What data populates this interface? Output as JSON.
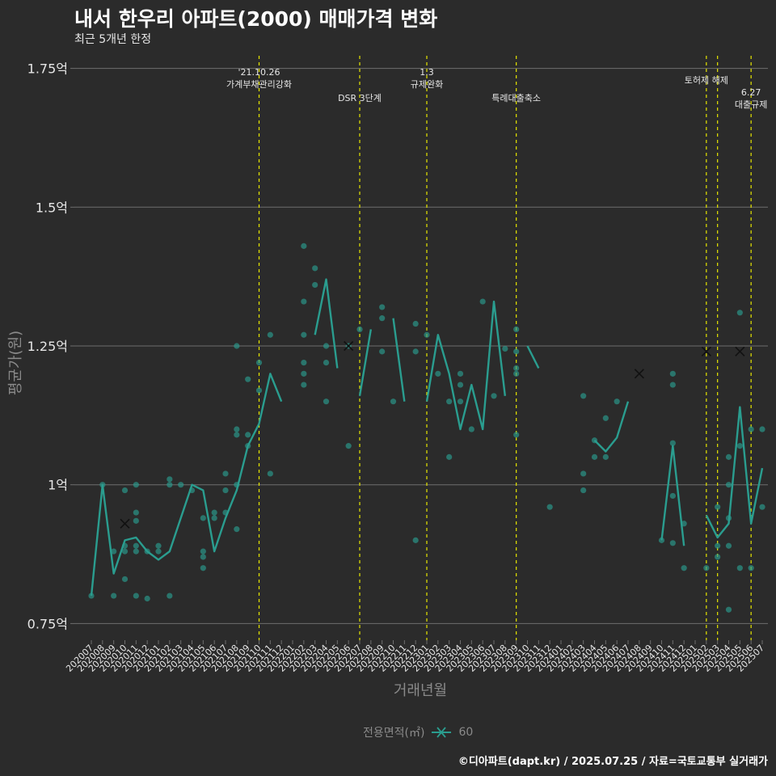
{
  "title": "내서 한우리 아파트(2000) 매매가격 변화",
  "subtitle": "최근 5개년 한정",
  "caption": "©디아파트(dapt.kr) / 2025.07.25 / 자료=국토교통부 실거래가",
  "colors": {
    "background": "#2b2b2b",
    "series": "#2a9d8f",
    "grid": "#6e6e6e",
    "event_line": "#e6e600",
    "text": "#e6e6e6"
  },
  "chart_data": {
    "type": "line",
    "xlabel": "거래년월",
    "ylabel": "평균가(원)",
    "categories": [
      "202007",
      "202008",
      "202009",
      "202010",
      "202011",
      "202012",
      "202101",
      "202102",
      "202103",
      "202104",
      "202105",
      "202106",
      "202107",
      "202108",
      "202109",
      "202110",
      "202111",
      "202112",
      "202201",
      "202202",
      "202203",
      "202204",
      "202205",
      "202206",
      "202207",
      "202208",
      "202209",
      "202210",
      "202211",
      "202212",
      "202301",
      "202302",
      "202303",
      "202304",
      "202305",
      "202306",
      "202307",
      "202308",
      "202309",
      "202310",
      "202311",
      "202312",
      "202401",
      "202402",
      "202403",
      "202404",
      "202405",
      "202406",
      "202407",
      "202408",
      "202409",
      "202410",
      "202411",
      "202412",
      "202501",
      "202502",
      "202503",
      "202504",
      "202505",
      "202506",
      "202507"
    ],
    "ylim": [
      0.72,
      1.78
    ],
    "yticks": [
      {
        "value": 0.75,
        "label": "0.75억"
      },
      {
        "value": 1.0,
        "label": "1억"
      },
      {
        "value": 1.25,
        "label": "1.25억"
      },
      {
        "value": 1.5,
        "label": "1.5억"
      },
      {
        "value": 1.75,
        "label": "1.75억"
      }
    ],
    "legend": {
      "title": "전용면적(㎡)",
      "entries": [
        "60"
      ],
      "position": "bottom"
    },
    "series": [
      {
        "name": "60",
        "line_values": [
          0.8,
          1.0,
          0.84,
          0.9,
          0.905,
          0.88,
          0.865,
          0.88,
          0.94,
          1.0,
          0.99,
          0.88,
          0.94,
          0.99,
          1.07,
          1.11,
          1.2,
          1.15,
          null,
          null,
          1.27,
          1.37,
          1.21,
          null,
          1.16,
          1.28,
          null,
          1.3,
          1.15,
          null,
          1.15,
          1.27,
          1.2,
          1.1,
          1.18,
          1.1,
          1.33,
          1.16,
          null,
          1.25,
          1.21,
          null,
          null,
          null,
          null,
          1.08,
          1.06,
          1.085,
          1.15,
          null,
          null,
          0.9,
          1.07,
          0.89,
          null,
          0.945,
          0.905,
          0.93,
          1.14,
          0.93,
          1.03
        ]
      }
    ],
    "scatter_points": [
      [
        0,
        0.8
      ],
      [
        1,
        1.0
      ],
      [
        2,
        0.88
      ],
      [
        2,
        0.8
      ],
      [
        3,
        0.88
      ],
      [
        3,
        0.89
      ],
      [
        3,
        0.99
      ],
      [
        3,
        0.83
      ],
      [
        4,
        0.88
      ],
      [
        4,
        0.95
      ],
      [
        4,
        0.935
      ],
      [
        4,
        0.89
      ],
      [
        4,
        1.0
      ],
      [
        4,
        0.8
      ],
      [
        5,
        0.88
      ],
      [
        5,
        0.795
      ],
      [
        6,
        0.88
      ],
      [
        6,
        0.89
      ],
      [
        7,
        1.0
      ],
      [
        7,
        1.01
      ],
      [
        7,
        0.8
      ],
      [
        8,
        1.0
      ],
      [
        9,
        0.99
      ],
      [
        10,
        0.94
      ],
      [
        10,
        0.88
      ],
      [
        10,
        0.87
      ],
      [
        10,
        0.85
      ],
      [
        11,
        0.95
      ],
      [
        11,
        0.94
      ],
      [
        12,
        0.99
      ],
      [
        12,
        1.02
      ],
      [
        12,
        0.95
      ],
      [
        13,
        1.0
      ],
      [
        13,
        1.09
      ],
      [
        13,
        1.1
      ],
      [
        13,
        1.25
      ],
      [
        13,
        0.92
      ],
      [
        14,
        1.19
      ],
      [
        14,
        1.09
      ],
      [
        14,
        1.07
      ],
      [
        15,
        1.22
      ],
      [
        15,
        1.17
      ],
      [
        16,
        1.27
      ],
      [
        16,
        1.02
      ],
      [
        19,
        1.43
      ],
      [
        19,
        1.33
      ],
      [
        19,
        1.27
      ],
      [
        19,
        1.2
      ],
      [
        19,
        1.22
      ],
      [
        19,
        1.18
      ],
      [
        20,
        1.39
      ],
      [
        20,
        1.36
      ],
      [
        21,
        1.25
      ],
      [
        21,
        1.22
      ],
      [
        21,
        1.15
      ],
      [
        23,
        1.25
      ],
      [
        23,
        1.07
      ],
      [
        24,
        1.28
      ],
      [
        26,
        1.32
      ],
      [
        26,
        1.3
      ],
      [
        26,
        1.24
      ],
      [
        27,
        1.15
      ],
      [
        29,
        1.29
      ],
      [
        29,
        1.24
      ],
      [
        29,
        0.9
      ],
      [
        30,
        1.27
      ],
      [
        31,
        1.2
      ],
      [
        32,
        1.15
      ],
      [
        32,
        1.05
      ],
      [
        33,
        1.2
      ],
      [
        33,
        1.18
      ],
      [
        33,
        1.15
      ],
      [
        34,
        1.1
      ],
      [
        35,
        1.33
      ],
      [
        36,
        1.16
      ],
      [
        37,
        1.245
      ],
      [
        38,
        1.28
      ],
      [
        38,
        1.24
      ],
      [
        38,
        1.2
      ],
      [
        38,
        1.21
      ],
      [
        38,
        1.09
      ],
      [
        41,
        0.96
      ],
      [
        44,
        1.16
      ],
      [
        44,
        1.02
      ],
      [
        44,
        0.99
      ],
      [
        45,
        1.08
      ],
      [
        45,
        1.05
      ],
      [
        46,
        1.12
      ],
      [
        46,
        1.05
      ],
      [
        47,
        1.15
      ],
      [
        51,
        0.9
      ],
      [
        52,
        1.2
      ],
      [
        52,
        1.18
      ],
      [
        52,
        1.075
      ],
      [
        52,
        0.98
      ],
      [
        52,
        0.895
      ],
      [
        53,
        0.93
      ],
      [
        53,
        0.85
      ],
      [
        55,
        0.85
      ],
      [
        56,
        0.96
      ],
      [
        56,
        0.87
      ],
      [
        56,
        0.89
      ],
      [
        57,
        1.05
      ],
      [
        57,
        1.0
      ],
      [
        57,
        0.94
      ],
      [
        57,
        0.89
      ],
      [
        57,
        0.775
      ],
      [
        58,
        1.31
      ],
      [
        58,
        1.07
      ],
      [
        58,
        0.85
      ],
      [
        59,
        1.1
      ],
      [
        59,
        0.85
      ],
      [
        60,
        1.1
      ],
      [
        60,
        0.96
      ]
    ],
    "cross_markers": [
      {
        "x": 3,
        "y": 0.93
      },
      {
        "x": 23,
        "y": 1.25
      },
      {
        "x": 49,
        "y": 1.2
      },
      {
        "x": 55,
        "y": 1.24
      },
      {
        "x": 58,
        "y": 1.24
      }
    ],
    "events": [
      {
        "x": 15,
        "lines": [
          "'21.10.26",
          "가계부채관리강화"
        ],
        "row": 0
      },
      {
        "x": 24,
        "lines": [
          "DSR 3단계"
        ],
        "row": 1
      },
      {
        "x": 30,
        "lines": [
          "1.3",
          "규제완화"
        ],
        "row": 0
      },
      {
        "x": 38,
        "lines": [
          "특례대출축소"
        ],
        "row": 1
      },
      {
        "x": 55,
        "lines": [
          "토허제 해제"
        ],
        "row": 0
      },
      {
        "x": 56,
        "lines": [],
        "row": 0
      },
      {
        "x": 59,
        "lines": [
          "6.27",
          "대출규제"
        ],
        "row": 2
      }
    ]
  }
}
